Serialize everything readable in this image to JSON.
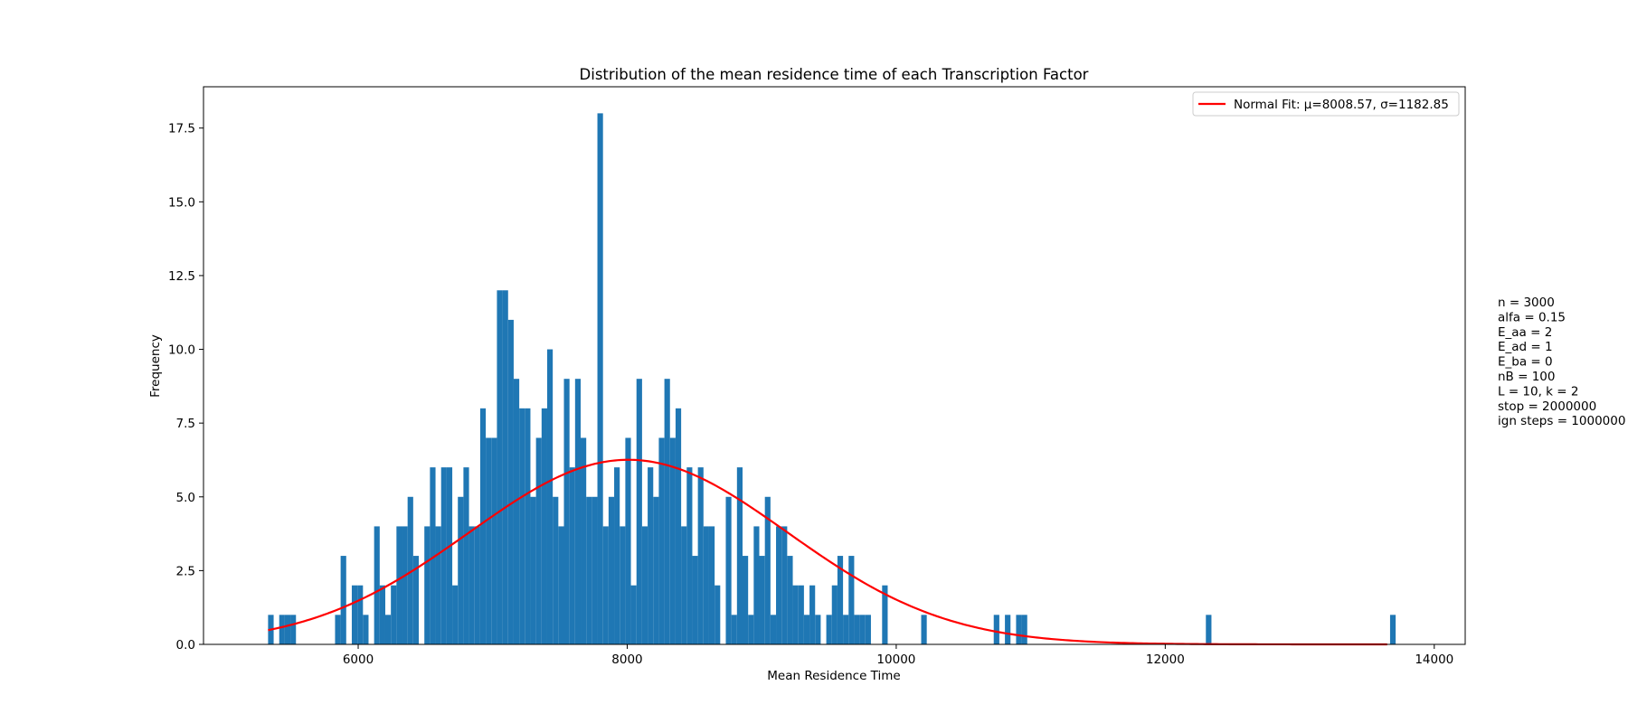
{
  "chart_data": {
    "type": "bar",
    "title": "Distribution of the mean residence time of each Transcription Factor",
    "xlabel": "Mean Residence Time",
    "ylabel": "Frequency",
    "xlim": [
      4850,
      14230
    ],
    "ylim": [
      0,
      18.9
    ],
    "xticks": [
      6000,
      8000,
      10000,
      12000,
      14000
    ],
    "xtick_labels": [
      "6000",
      "8000",
      "10000",
      "12000",
      "14000"
    ],
    "yticks": [
      0,
      2.5,
      5,
      7.5,
      10,
      12.5,
      15,
      17.5
    ],
    "ytick_labels": [
      "0.0",
      "2.5",
      "5.0",
      "7.5",
      "10.0",
      "12.5",
      "15.0",
      "17.5"
    ],
    "grid": false,
    "legend_position": "top-right",
    "bar_color": "#1f77b4",
    "fit_color": "#ff0000",
    "histogram": {
      "x_start": 5330,
      "bin_width": 41.5,
      "counts": [
        1,
        0,
        1,
        1,
        1,
        0,
        0,
        0,
        0,
        0,
        0,
        0,
        1,
        3,
        0,
        2,
        2,
        1,
        0,
        4,
        2,
        1,
        2,
        4,
        4,
        5,
        3,
        0,
        4,
        6,
        4,
        6,
        6,
        2,
        5,
        6,
        4,
        4,
        8,
        7,
        7,
        12,
        12,
        11,
        9,
        8,
        8,
        5,
        7,
        8,
        10,
        5,
        4,
        9,
        6,
        9,
        7,
        5,
        5,
        18,
        4,
        5,
        6,
        4,
        7,
        2,
        9,
        4,
        6,
        5,
        7,
        9,
        7,
        8,
        4,
        6,
        3,
        6,
        4,
        4,
        2,
        0,
        5,
        1,
        6,
        3,
        1,
        4,
        3,
        5,
        1,
        4,
        4,
        3,
        2,
        2,
        1,
        2,
        1,
        0,
        1,
        2,
        3,
        1,
        3,
        1,
        1,
        1,
        0,
        0,
        2,
        0,
        0,
        0,
        0,
        0,
        0,
        1,
        0,
        0,
        0,
        0,
        0,
        0,
        0,
        0,
        0,
        0,
        0,
        0,
        1,
        0,
        1,
        0,
        1,
        1,
        0,
        0,
        0,
        0,
        0,
        0,
        0,
        0,
        0,
        0,
        0,
        0,
        0,
        0,
        0,
        0,
        0,
        0,
        0,
        0,
        0,
        0,
        0,
        0,
        0,
        0,
        0,
        0,
        0,
        0,
        0,
        0,
        1,
        0,
        0,
        0,
        0,
        0,
        0,
        0,
        0,
        0,
        0,
        0,
        0,
        0,
        0,
        0,
        0,
        0,
        0,
        0,
        0,
        0,
        0,
        0,
        0,
        0,
        0,
        0,
        0,
        0,
        0,
        0,
        0,
        1
      ]
    },
    "series": [
      {
        "name": "Normal Fit: μ=8008.57, σ=1182.85",
        "type": "line",
        "mu": 8008.57,
        "sigma": 1182.85,
        "x_range": [
          5330,
          13650
        ]
      }
    ],
    "annotation_lines": [
      "n = 3000",
      "alfa = 0.15",
      "E_aa = 2",
      "E_ad = 1",
      "E_ba = 0",
      "nB = 100",
      "L = 10, k = 2",
      "stop = 2000000",
      "ign steps = 1000000"
    ]
  }
}
